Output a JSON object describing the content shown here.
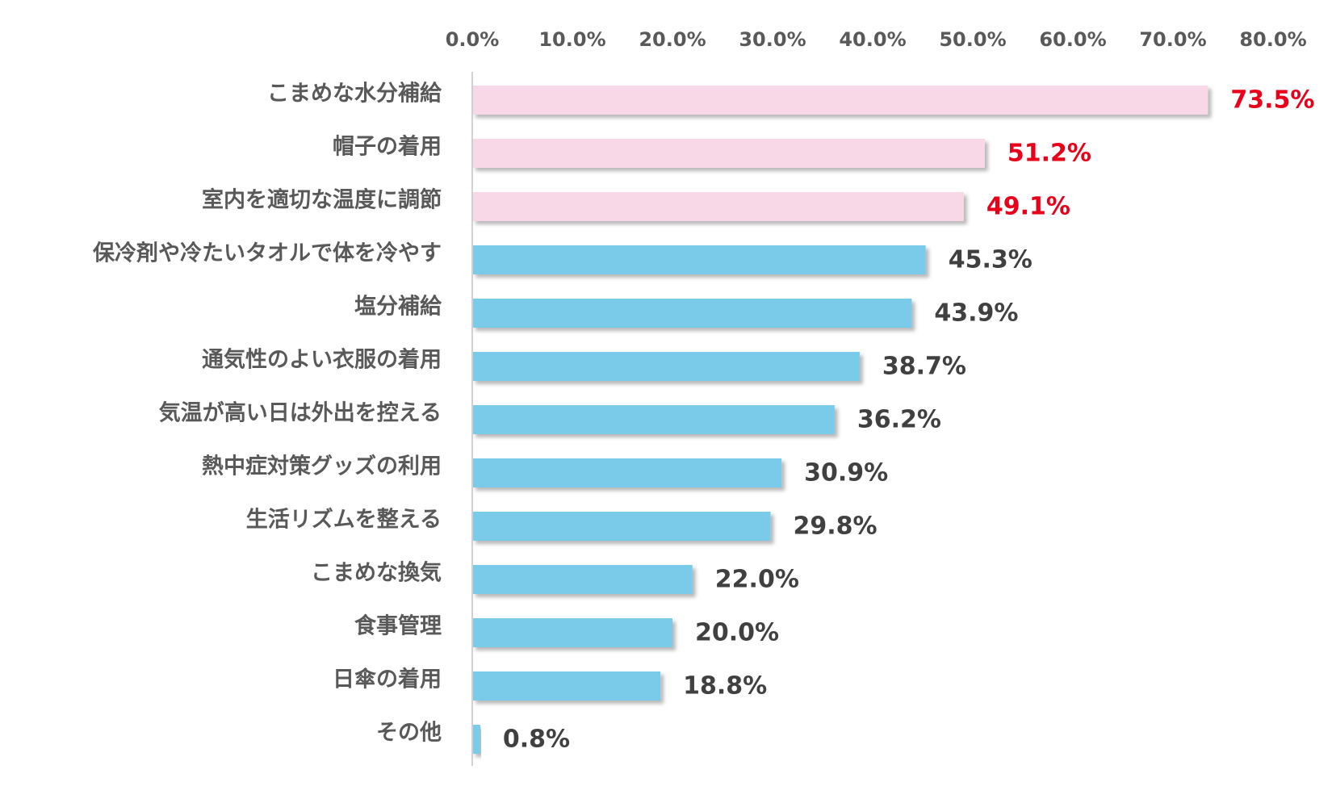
{
  "chart_data": {
    "type": "bar",
    "orientation": "horizontal",
    "xlim": [
      0,
      80
    ],
    "tick_values": [
      0,
      10,
      20,
      30,
      40,
      50,
      60,
      70,
      80
    ],
    "tick_labels": [
      "0.0%",
      "10.0%",
      "20.0%",
      "30.0%",
      "40.0%",
      "50.0%",
      "60.0%",
      "70.0%",
      "80.0%"
    ],
    "axis_position": "top",
    "grid": false,
    "categories": [
      "こまめな水分補給",
      "帽子の着用",
      "室内を適切な温度に調節",
      "保冷剤や冷たいタオルで体を冷やす",
      "塩分補給",
      "通気性のよい衣服の着用",
      "気温が高い日は外出を控える",
      "熱中症対策グッズの利用",
      "生活リズムを整える",
      "こまめな換気",
      "食事管理",
      "日傘の着用",
      "その他"
    ],
    "values": [
      73.5,
      51.2,
      49.1,
      45.3,
      43.9,
      38.7,
      36.2,
      30.9,
      29.8,
      22.0,
      20.0,
      18.8,
      0.8
    ],
    "value_labels": [
      "73.5%",
      "51.2%",
      "49.1%",
      "45.3%",
      "43.9%",
      "38.7%",
      "36.2%",
      "30.9%",
      "29.8%",
      "22.0%",
      "20.0%",
      "18.8%",
      "0.8%"
    ],
    "highlight_count": 3,
    "colors": {
      "highlight_bar": "#F8D7E6",
      "normal_bar": "#7ACAEA",
      "highlight_label": "#E8001A",
      "normal_label": "#404040",
      "category_text": "#595959",
      "axis_line": "#D0D0D0"
    }
  }
}
